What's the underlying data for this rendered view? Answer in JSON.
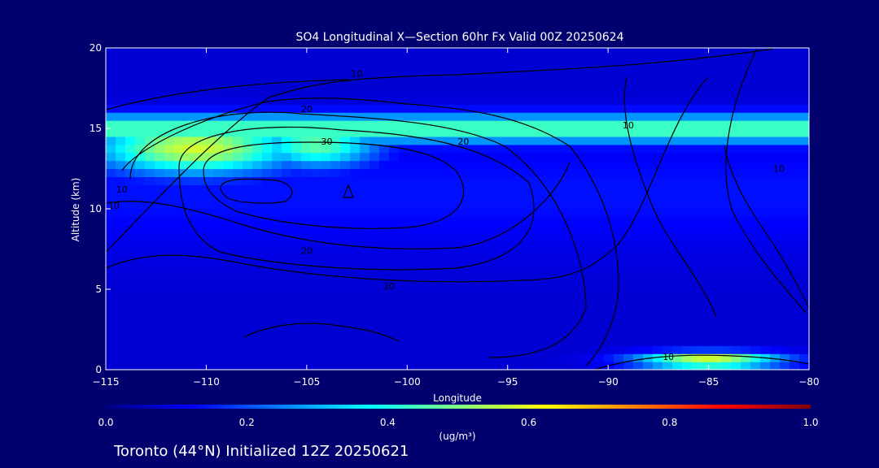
{
  "chart_data": {
    "type": "heatmap",
    "title": "SO4 Longitudinal X—Section 60hr  Fx Valid 00Z 20250624",
    "footer": "Toronto (44°N) Initialized 12Z 20250621",
    "xlabel": "Longitude",
    "ylabel": "Altitude (km)",
    "xlim": [
      -115,
      -80
    ],
    "ylim": [
      0,
      20
    ],
    "xticks": [
      -115,
      -110,
      -105,
      -100,
      -95,
      -90,
      -85,
      -80
    ],
    "xtick_labels": [
      "−115",
      "−110",
      "−105",
      "−100",
      "−95",
      "−90",
      "−85",
      "−80"
    ],
    "yticks": [
      0,
      5,
      10,
      15,
      20
    ],
    "ytick_labels": [
      "0",
      "5",
      "10",
      "15",
      "20"
    ],
    "colorbar": {
      "label": "(ug/m³)",
      "range": [
        0,
        1.0
      ],
      "ticks": [
        0.0,
        0.2,
        0.4,
        0.6,
        0.8,
        1.0
      ],
      "tick_labels": [
        "0.0",
        "0.2",
        "0.4",
        "0.6",
        "0.8",
        "1.0"
      ],
      "colors": [
        "#000082",
        "#0000ff",
        "#0080ff",
        "#00ffff",
        "#80ff80",
        "#ffff00",
        "#ff8000",
        "#ff0000",
        "#800000"
      ]
    },
    "fields": {
      "background_value": 0.08,
      "features": [
        {
          "name": "upper-layer",
          "lon": [
            -115,
            -80
          ],
          "alt": 15.0,
          "alt_halfwidth": 0.9,
          "value": 0.46
        },
        {
          "name": "western-plume",
          "lon": -110.5,
          "alt": 13.8,
          "lon_halfwidth": 5.0,
          "alt_halfwidth": 1.6,
          "value": 0.58
        },
        {
          "name": "mid-plume",
          "lon": -104.5,
          "alt": 14.0,
          "lon_halfwidth": 3.0,
          "alt_halfwidth": 1.4,
          "value": 0.47
        },
        {
          "name": "surface-east",
          "lon": -85,
          "alt": 0.6,
          "lon_halfwidth": 3.5,
          "alt_halfwidth": 0.5,
          "value": 0.62
        }
      ]
    },
    "contours": {
      "levels": [
        10,
        20,
        30
      ],
      "labels": [
        {
          "text": "10",
          "lon": -102.5,
          "alt": 18.2
        },
        {
          "text": "20",
          "lon": -105.0,
          "alt": 16.0
        },
        {
          "text": "30",
          "lon": -104.0,
          "alt": 14.0
        },
        {
          "text": "10",
          "lon": -114.2,
          "alt": 11.0
        },
        {
          "text": "10",
          "lon": -114.6,
          "alt": 10.0
        },
        {
          "text": "20",
          "lon": -97.2,
          "alt": 14.0
        },
        {
          "text": "10",
          "lon": -89.0,
          "alt": 15.0
        },
        {
          "text": "10",
          "lon": -81.5,
          "alt": 12.3
        },
        {
          "text": "20",
          "lon": -105.0,
          "alt": 7.2
        },
        {
          "text": "10",
          "lon": -100.9,
          "alt": 5.0
        },
        {
          "text": "10",
          "lon": -87.0,
          "alt": 0.6
        }
      ]
    }
  }
}
